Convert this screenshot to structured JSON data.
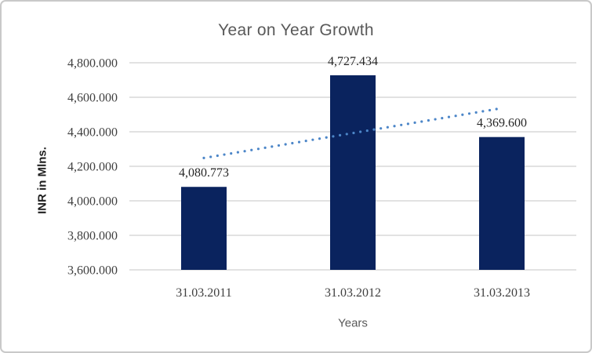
{
  "window": {
    "background": "#ffffff",
    "border_color": "#c9c9c9"
  },
  "chart_data": {
    "type": "bar",
    "title": "Year on Year Growth",
    "xlabel": "Years",
    "ylabel": "INR in Mlns.",
    "categories": [
      "31.03.2011",
      "31.03.2012",
      "31.03.2013"
    ],
    "values": [
      4080.773,
      4727.434,
      4369.6
    ],
    "data_labels": [
      "4,080.773",
      "4,727.434",
      "4,369.600"
    ],
    "ylim": [
      3600,
      4800
    ],
    "ytick_step": 200,
    "ytick_labels": [
      "3,600.000",
      "3,800.000",
      "4,000.000",
      "4,200.000",
      "4,400.000",
      "4,600.000",
      "4,800.000"
    ],
    "grid": true,
    "legend": "none",
    "trendline": {
      "type": "linear",
      "style": "dotted"
    },
    "colors": {
      "bar": "#0a235e",
      "gridline": "#d9d9d9",
      "trendline": "#4c86c8",
      "title_text": "#595959",
      "tick_text": "#404040",
      "category_text": "#404040",
      "data_label_text": "#262626",
      "ylabel_text": "#1f1f1f",
      "xlabel_text": "#595959"
    }
  }
}
